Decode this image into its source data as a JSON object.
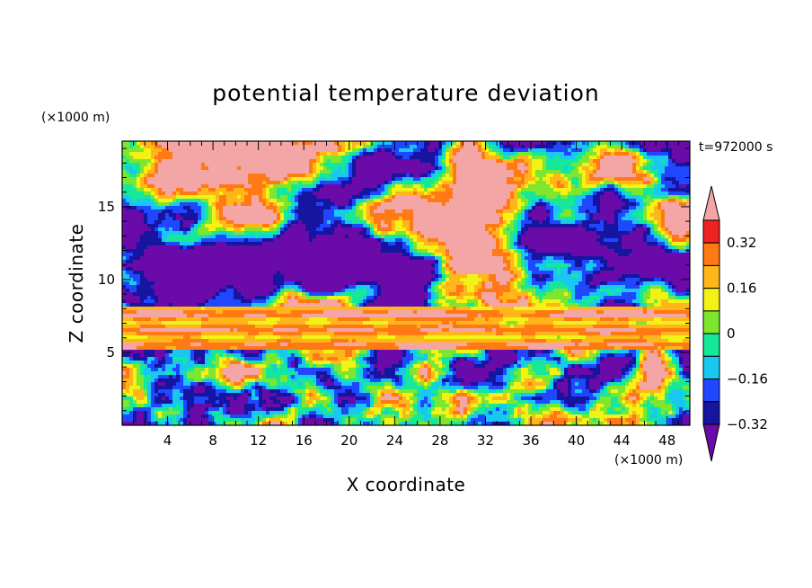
{
  "chart_data": {
    "type": "heatmap",
    "title": "potential temperature deviation",
    "xlabel": "X coordinate",
    "ylabel": "Z coordinate",
    "x_unit": "(×1000 m)",
    "y_unit": "(×1000 m)",
    "time_label": "t=972000 s",
    "xlim": [
      0,
      50
    ],
    "ylim": [
      0,
      19.5
    ],
    "x_ticks": [
      4,
      8,
      12,
      16,
      20,
      24,
      28,
      32,
      36,
      40,
      44,
      48
    ],
    "y_ticks": [
      5,
      10,
      15
    ],
    "colorbar": {
      "levels": [
        -0.4,
        -0.32,
        -0.24,
        -0.16,
        -0.08,
        0,
        0.08,
        0.16,
        0.24,
        0.32,
        0.4
      ],
      "labeled_levels": [
        -0.32,
        -0.16,
        0,
        0.16,
        0.32
      ],
      "labels": [
        "−0.32",
        "−0.16",
        "0",
        "0.16",
        "0.32"
      ],
      "colors": [
        "#6a0aa8",
        "#1515a0",
        "#1f47ff",
        "#19c8f0",
        "#16e89a",
        "#7fe630",
        "#f2f214",
        "#ffb61a",
        "#ff7a14",
        "#ee2222",
        "#f4a6a6"
      ],
      "extend": "both"
    },
    "regions": [
      {
        "z_range": [
          0,
          5
        ],
        "description": "turbulent boundary layer, mixed values"
      },
      {
        "z_range": [
          5,
          8
        ],
        "description": "positive banded layer"
      },
      {
        "z_range": [
          8,
          19.5
        ],
        "description": "alternating large positive and negative patches"
      }
    ]
  }
}
